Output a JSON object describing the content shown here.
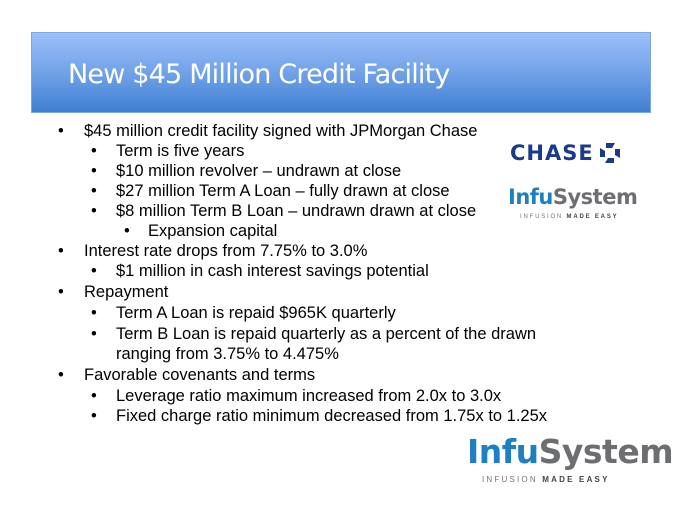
{
  "title": "New $45 Million Credit Facility",
  "bullets": [
    {
      "level": 1,
      "text": "$45 million credit facility signed with JPMorgan Chase"
    },
    {
      "level": 2,
      "text": "Term is five years"
    },
    {
      "level": 2,
      "text": "$10 million revolver – undrawn at close"
    },
    {
      "level": 2,
      "text": "$27 million Term A Loan – fully drawn at close"
    },
    {
      "level": 2,
      "text": "$8 million Term B Loan – undrawn drawn at close"
    },
    {
      "level": 3,
      "text": "Expansion capital"
    },
    {
      "level": 1,
      "text": "Interest rate drops from 7.75% to 3.0%"
    },
    {
      "level": 2,
      "text": "$1 million in cash interest savings potential"
    },
    {
      "level": 1,
      "text": "Repayment"
    },
    {
      "level": 2,
      "text": "Term A Loan is repaid $965K quarterly"
    },
    {
      "level": 2,
      "text": "Term B Loan is repaid quarterly as a percent of the drawn"
    },
    {
      "level": 0,
      "text": "ranging from 3.75% to 4.475%"
    },
    {
      "level": 1,
      "text": "Favorable covenants and terms"
    },
    {
      "level": 2,
      "text": "Leverage ratio maximum increased from 2.0x to 3.0x"
    },
    {
      "level": 2,
      "text": "Fixed charge ratio minimum decreased from 1.75x to 1.25x"
    }
  ],
  "bullet_char": "•",
  "logos": {
    "chase": "CHASE",
    "infusystem_a": "Infu",
    "infusystem_b": "System",
    "tagline_a": "INFUSION",
    "tagline_b": "MADE EASY"
  },
  "colors": {
    "header_top": "#9dc0fa",
    "header_bottom": "#3f7fd2",
    "chase_blue": "#1b3b8a",
    "infu_blue": "#1f7fc4",
    "infu_gray": "#6d6e71"
  }
}
